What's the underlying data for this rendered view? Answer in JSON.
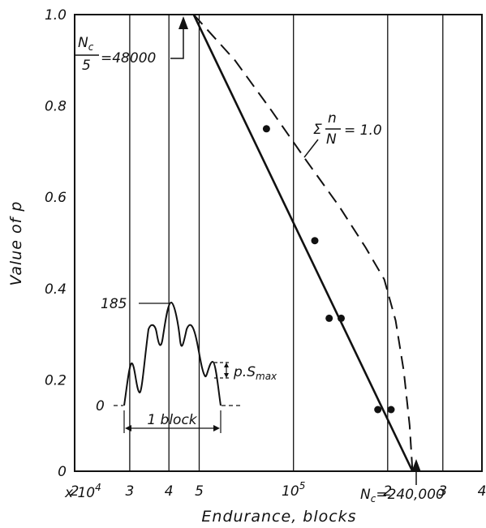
{
  "chart_data": {
    "type": "line",
    "xlabel": "Endurance, blocks",
    "ylabel": "Value of p",
    "x_scale": "log",
    "xlim": [
      20000,
      400000
    ],
    "ylim": [
      0,
      1.0
    ],
    "y_ticks": [
      "0",
      "0.2",
      "0.4",
      "0.6",
      "0.8",
      "1.0"
    ],
    "x_tick_labels": [
      {
        "x": 20000,
        "label": "2"
      },
      {
        "x": 30000,
        "label": "3"
      },
      {
        "x": 40000,
        "label": "4"
      },
      {
        "x": 50000,
        "label": "5"
      },
      {
        "x": 100000,
        "label": "10",
        "sup": "5"
      },
      {
        "x": 200000,
        "label": "2"
      },
      {
        "x": 300000,
        "label": "3"
      },
      {
        "x": 400000,
        "label": "4"
      }
    ],
    "x_multiplier_label": {
      "base": "x 10",
      "sup": "4"
    },
    "vertical_grid_x": [
      30000,
      40000,
      50000,
      100000,
      200000,
      300000
    ],
    "series": [
      {
        "style": "solid",
        "x": [
          48000,
          240000
        ],
        "y": [
          1.0,
          0.0
        ]
      },
      {
        "style": "dashed",
        "x": [
          48000,
          65000,
          85000,
          110000,
          140000,
          170000,
          195000,
          212000,
          225000,
          235000,
          240000
        ],
        "y": [
          1.0,
          0.9,
          0.79,
          0.68,
          0.58,
          0.49,
          0.42,
          0.33,
          0.22,
          0.1,
          0.0
        ]
      },
      {
        "style": "points",
        "x": [
          82000,
          117000,
          130000,
          142000,
          186000,
          205000
        ],
        "y": [
          0.75,
          0.505,
          0.335,
          0.335,
          0.135,
          0.135
        ]
      }
    ],
    "annotations": {
      "nc5": {
        "num": "N",
        "num_sub": "c",
        "den": "5",
        "value": "=48000"
      },
      "miner": {
        "sigma": "Σ",
        "num": "n",
        "den": "N",
        "value": "= 1.0"
      },
      "nc": {
        "base": "N",
        "sub": "c",
        "value": "=240,000"
      }
    },
    "inset": {
      "peak_label": "185",
      "zero_label": "0",
      "amp_label": "p.S",
      "amp_sub": "max",
      "block_label": "1 block"
    }
  }
}
